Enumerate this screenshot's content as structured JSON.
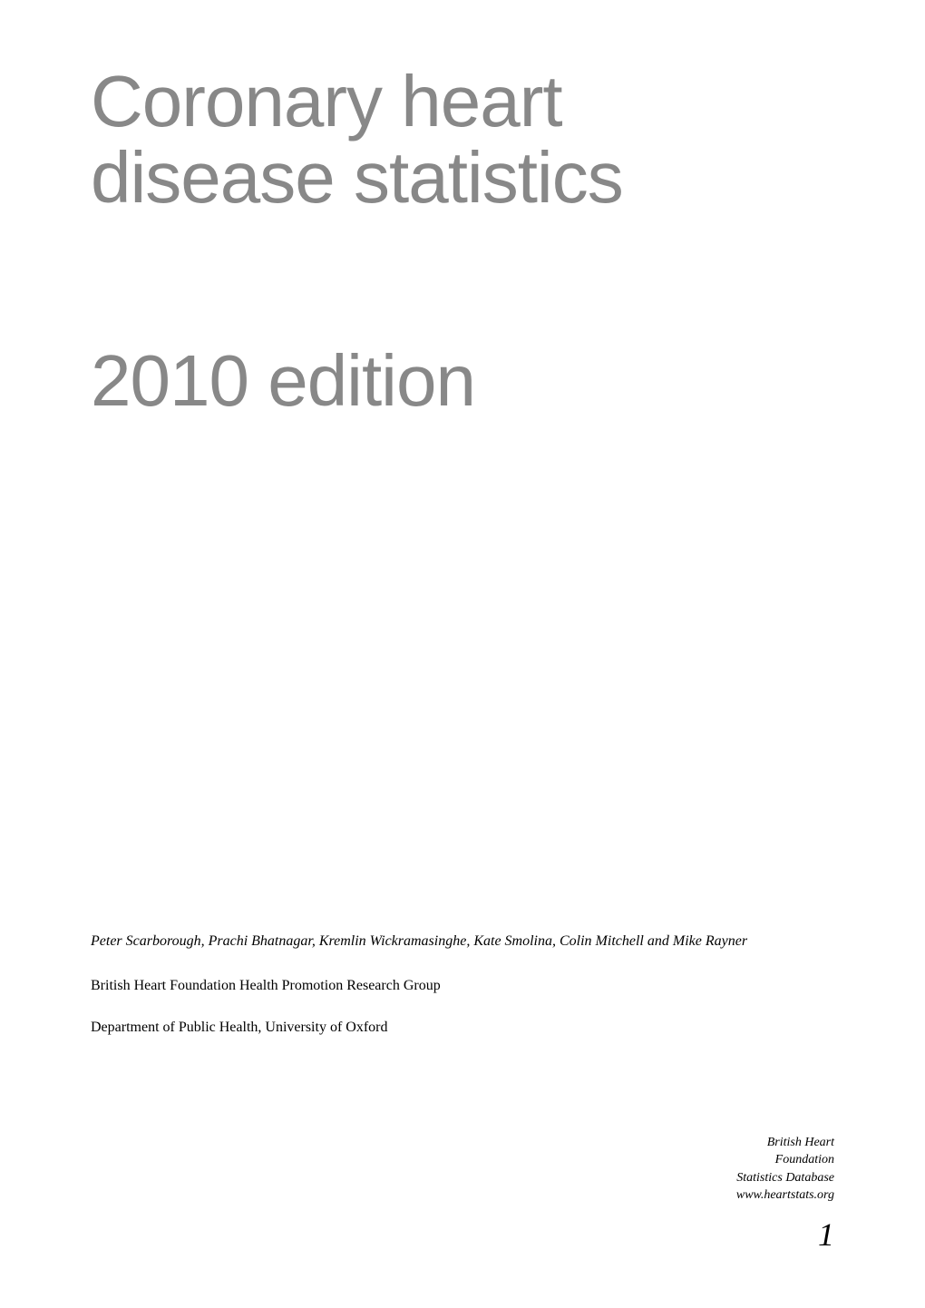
{
  "title": {
    "line1": "Coronary heart",
    "line2": "disease statistics"
  },
  "edition": "2010 edition",
  "authors": "Peter Scarborough, Prachi Bhatnagar, Kremlin Wickramasinghe, Kate Smolina, Colin Mitchell and Mike Rayner",
  "research_group": "British Heart Foundation Health Promotion Research Group",
  "department": "Department of Public Health, University of Oxford",
  "footer": {
    "line1": "British Heart",
    "line2": "Foundation",
    "line3": "Statistics Database",
    "line4": "www.heartstats.org"
  },
  "page_number": "1",
  "colors": {
    "title_color": "#888888",
    "body_text_color": "#000000",
    "background_color": "#ffffff"
  },
  "typography": {
    "title_fontsize": 80,
    "title_weight": 300,
    "body_fontsize": 16,
    "footer_fontsize": 14,
    "page_number_fontsize": 36
  }
}
